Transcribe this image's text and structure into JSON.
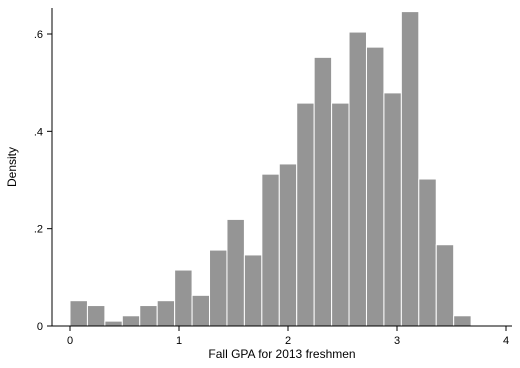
{
  "chart_data": {
    "type": "bar",
    "subtype": "histogram",
    "title": "",
    "xlabel": "Fall GPA for 2013 freshmen",
    "ylabel": "Density",
    "xlim": [
      -0.1,
      4.1
    ],
    "ylim": [
      0,
      0.65
    ],
    "x_ticks": [
      0,
      1,
      2,
      3,
      4
    ],
    "x_tick_labels": [
      "0",
      "1",
      "2",
      "3",
      "4"
    ],
    "y_ticks": [
      0,
      0.2,
      0.4,
      0.6
    ],
    "y_tick_labels": [
      "0",
      ".2",
      ".4",
      ".6"
    ],
    "bin_width": 0.16,
    "bin_start": 0,
    "values": [
      0.052,
      0.042,
      0.01,
      0.021,
      0.042,
      0.052,
      0.115,
      0.063,
      0.156,
      0.219,
      0.146,
      0.312,
      0.333,
      0.458,
      0.552,
      0.458,
      0.604,
      0.573,
      0.479,
      0.646,
      0.302,
      0.167,
      0.021
    ],
    "grid": false,
    "legend": "none",
    "colors": {
      "bar_fill": "#959595",
      "bar_edge": "#ffffff",
      "axis": "#000000",
      "background": "#ffffff"
    }
  }
}
